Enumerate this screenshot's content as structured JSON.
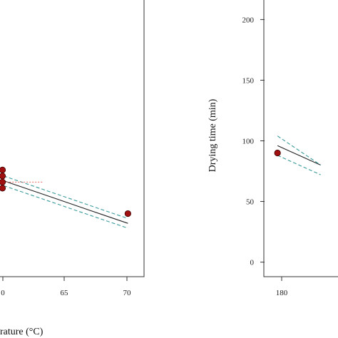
{
  "chart_data": [
    {
      "type": "line",
      "xlabel": "rature (°C)",
      "ylabel": "",
      "x_ticks": [
        "0",
        "65",
        "70"
      ],
      "xlim": [
        59.7,
        71.3
      ],
      "ylim": [
        -12,
        222
      ],
      "grid": false,
      "series": [
        {
          "kind": "fit",
          "x": [
            60,
            62,
            64,
            66,
            68,
            70
          ],
          "y": [
            67,
            60,
            53,
            46,
            39,
            32
          ]
        },
        {
          "kind": "upper",
          "x": [
            60,
            62,
            64,
            66,
            68,
            70
          ],
          "y": [
            71,
            64,
            57,
            50,
            43,
            36
          ]
        },
        {
          "kind": "lower",
          "x": [
            60,
            62,
            64,
            66,
            68,
            70
          ],
          "y": [
            63,
            56,
            49,
            42,
            35,
            28
          ]
        },
        {
          "kind": "ref",
          "x": [
            60,
            63.2
          ],
          "y": [
            66,
            66
          ]
        },
        {
          "kind": "points",
          "x": [
            59.9,
            59.9,
            59.9,
            59.9,
            70
          ],
          "y": [
            76,
            71,
            66,
            61,
            40
          ]
        }
      ]
    },
    {
      "type": "line",
      "xlabel": "",
      "ylabel": "Drying time (min)",
      "x_ticks": [
        "180"
      ],
      "y_ticks": [
        "0",
        "50",
        "100",
        "150",
        "200"
      ],
      "xlim": [
        174,
        210
      ],
      "ylim": [
        -12,
        222
      ],
      "grid": false,
      "series": [
        {
          "kind": "fit",
          "x": [
            180,
            185,
            190,
            195,
            200
          ],
          "y": [
            96,
            92,
            88,
            84,
            80
          ]
        },
        {
          "kind": "upper",
          "x": [
            180,
            185,
            190,
            195,
            200
          ],
          "y": [
            104,
            98,
            92,
            86,
            80
          ]
        },
        {
          "kind": "lower",
          "x": [
            180,
            185,
            190,
            195,
            200
          ],
          "y": [
            88,
            84,
            80,
            76,
            72
          ]
        },
        {
          "kind": "points",
          "x": [
            180
          ],
          "y": [
            90
          ]
        }
      ]
    }
  ],
  "colors": {
    "fit": "#222222",
    "band": "#3a9b9b",
    "ref": "#e05050",
    "point_fill": "#a01010",
    "point_edge": "#3a0000",
    "axis": "#333333"
  }
}
